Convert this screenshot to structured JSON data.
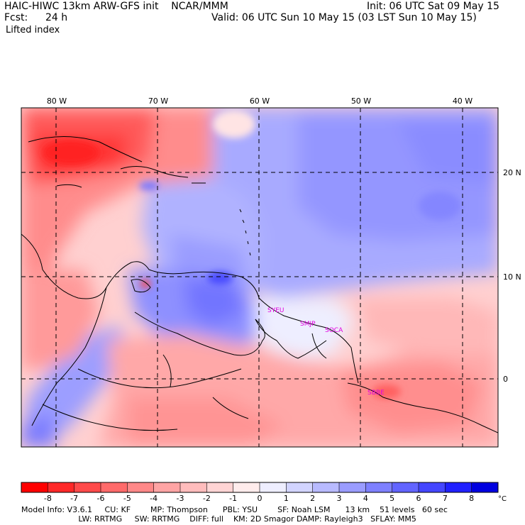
{
  "header": {
    "model_line": "HAIC-HIWC 13km ARW-GFS init    NCAR/MMM",
    "fcst_label": "Fcst:",
    "fcst_value": "24 h",
    "field_name": "Lifted index",
    "init": "Init: 06 UTC Sat 09 May 15",
    "valid": "Valid: 06 UTC Sun 10 May 15 (03 LST Sun 10 May 15)"
  },
  "map": {
    "lon_labels": [
      "80 W",
      "70 W",
      "60 W",
      "50 W",
      "40 W"
    ],
    "lat_labels": [
      "20 N",
      "10 N",
      "0"
    ],
    "stations": [
      "SYEU",
      "SMJP",
      "SOCA",
      "SBBE"
    ],
    "station_color": "#e000e0"
  },
  "colorbar": {
    "ticks": [
      "-8",
      "-7",
      "-6",
      "-5",
      "-4",
      "-3",
      "-2",
      "-1",
      "0",
      "1",
      "2",
      "3",
      "4",
      "5",
      "6",
      "7",
      "8"
    ],
    "unit": "°C",
    "colors": [
      "#ff0000",
      "#ff2828",
      "#ff4a4a",
      "#ff6a6a",
      "#ff8888",
      "#ffa4a4",
      "#ffbcbc",
      "#ffd4d4",
      "#ffecec",
      "#eeeeff",
      "#d2d4ff",
      "#b8baff",
      "#9a9cff",
      "#7e80ff",
      "#6264ff",
      "#4446ff",
      "#2020ff",
      "#0000e0"
    ]
  },
  "footer": {
    "line1": "Model Info: V3.6.1     CU: KF        MP: Thompson      PBL: YSU        SF: Noah LSM      13 km    51 levels   60 sec",
    "line2": "                       LW: RRTMG     SW: RRTMG    DIFF: full    KM: 2D Smagor DAMP: Rayleigh3   SFLAY: MM5"
  }
}
